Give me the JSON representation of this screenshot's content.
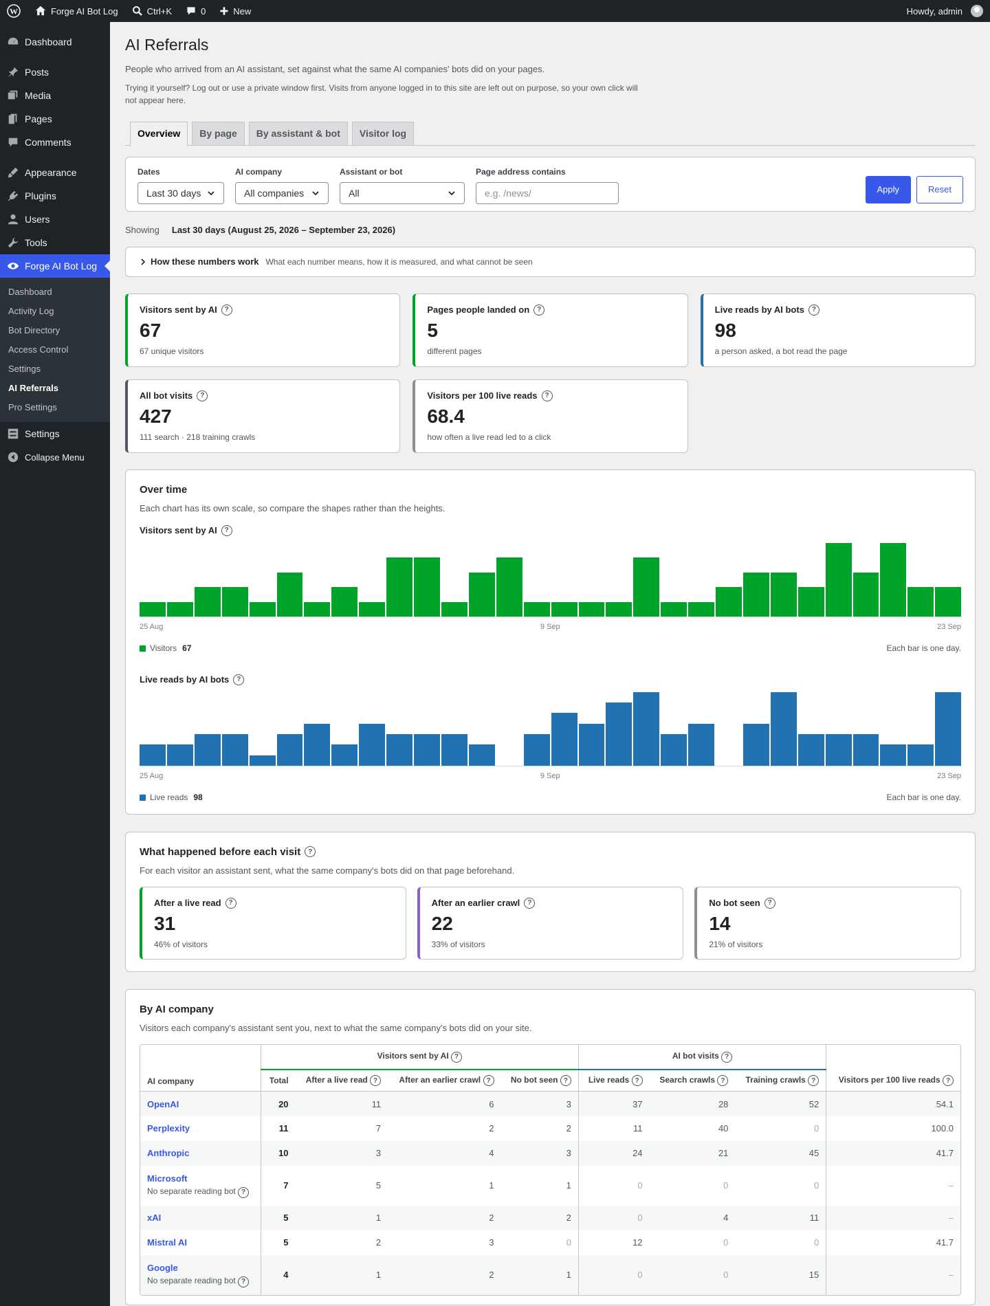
{
  "adminbar": {
    "site": "Forge AI Bot Log",
    "search": "Ctrl+K",
    "comments": "0",
    "new": "New",
    "howdy": "Howdy, admin"
  },
  "sidebar": {
    "items": [
      "Dashboard",
      "Posts",
      "Media",
      "Pages",
      "Comments",
      "Appearance",
      "Plugins",
      "Users",
      "Tools",
      "Forge AI Bot Log",
      "Settings",
      "Collapse Menu"
    ],
    "sub": [
      "Dashboard",
      "Activity Log",
      "Bot Directory",
      "Access Control",
      "Settings",
      "AI Referrals",
      "Pro Settings"
    ]
  },
  "page": {
    "title": "AI Referrals",
    "lead": "People who arrived from an AI assistant, set against what the same AI companies' bots did on your pages.",
    "note": "Trying it yourself? Log out or use a private window first. Visits from anyone logged in to this site are left out on purpose, so your own click will not appear here."
  },
  "tabs": [
    "Overview",
    "By page",
    "By assistant & bot",
    "Visitor log"
  ],
  "filters": {
    "dates_label": "Dates",
    "dates": "Last 30 days",
    "company_label": "AI company",
    "company": "All companies",
    "bot_label": "Assistant or bot",
    "bot": "All",
    "page_label": "Page address contains",
    "page_placeholder": "e.g. /news/",
    "apply": "Apply",
    "reset": "Reset"
  },
  "showing": {
    "label": "Showing",
    "value": "Last 30 days (August 25, 2026 – September 23, 2026)"
  },
  "how": {
    "title": "How these numbers work",
    "desc": "What each number means, how it is measured, and what cannot be seen"
  },
  "stats": [
    {
      "title": "Visitors sent by AI",
      "value": "67",
      "sub": "67 unique visitors",
      "color": "#00a32a"
    },
    {
      "title": "Pages people landed on",
      "value": "5",
      "sub": "different pages",
      "color": "#00a32a"
    },
    {
      "title": "Live reads by AI bots",
      "value": "98",
      "sub": "a person asked, a bot read the page",
      "color": "#2271b1"
    },
    {
      "title": "All bot visits",
      "value": "427",
      "sub": "111 search · 218 training crawls",
      "color": "#50575e"
    },
    {
      "title": "Visitors per 100 live reads",
      "value": "68.4",
      "sub": "how often a live read led to a click",
      "color": "#8c8f94"
    }
  ],
  "over": {
    "title": "Over time",
    "desc": "Each chart has its own scale, so compare the shapes rather than the heights.",
    "per_day": "Each bar is one day."
  },
  "chart_data": [
    {
      "type": "bar",
      "title": "Visitors sent by AI",
      "color": "#00a32a",
      "x_ticks": [
        "25 Aug",
        "9 Sep",
        "23 Sep"
      ],
      "legend": "Visitors",
      "total": "67",
      "values": [
        1,
        1,
        2,
        2,
        1,
        3,
        1,
        2,
        1,
        4,
        4,
        1,
        3,
        4,
        1,
        1,
        1,
        1,
        4,
        1,
        1,
        2,
        3,
        3,
        2,
        5,
        3,
        5,
        2,
        2
      ]
    },
    {
      "type": "bar",
      "title": "Live reads by AI bots",
      "color": "#2271b1",
      "x_ticks": [
        "25 Aug",
        "9 Sep",
        "23 Sep"
      ],
      "legend": "Live reads",
      "total": "98",
      "values": [
        2,
        2,
        3,
        3,
        1,
        3,
        4,
        2,
        4,
        3,
        3,
        3,
        2,
        0,
        3,
        5,
        4,
        6,
        7,
        3,
        4,
        0,
        4,
        7,
        3,
        3,
        3,
        2,
        2,
        7
      ]
    }
  ],
  "before": {
    "title": "What happened before each visit",
    "desc": "For each visitor an assistant sent, what the same company's bots did on that page beforehand.",
    "cards": [
      {
        "title": "After a live read",
        "value": "31",
        "sub": "46% of visitors",
        "color": "#00a32a"
      },
      {
        "title": "After an earlier crawl",
        "value": "22",
        "sub": "33% of visitors",
        "color": "#8c5fd0"
      },
      {
        "title": "No bot seen",
        "value": "14",
        "sub": "21% of visitors",
        "color": "#8c8f94"
      }
    ]
  },
  "company": {
    "title": "By AI company",
    "desc": "Visitors each company's assistant sent you, next to what the same company's bots did on your site.",
    "group1": "Visitors sent by AI",
    "group2": "AI bot visits",
    "headers": [
      "AI company",
      "Total",
      "After a live read",
      "After an earlier crawl",
      "No bot seen",
      "Live reads",
      "Search crawls",
      "Training crawls",
      "Visitors per 100 live reads"
    ],
    "rows": [
      {
        "name": "OpenAI",
        "note": "",
        "cells": [
          "20",
          "11",
          "6",
          "3",
          "37",
          "28",
          "52",
          "54.1"
        ]
      },
      {
        "name": "Perplexity",
        "note": "",
        "cells": [
          "11",
          "7",
          "2",
          "2",
          "11",
          "40",
          "0",
          "100.0"
        ]
      },
      {
        "name": "Anthropic",
        "note": "",
        "cells": [
          "10",
          "3",
          "4",
          "3",
          "24",
          "21",
          "45",
          "41.7"
        ]
      },
      {
        "name": "Microsoft",
        "note": "No separate reading bot",
        "cells": [
          "7",
          "5",
          "1",
          "1",
          "0",
          "0",
          "0",
          "–"
        ]
      },
      {
        "name": "xAI",
        "note": "",
        "cells": [
          "5",
          "1",
          "2",
          "2",
          "0",
          "4",
          "11",
          "–"
        ]
      },
      {
        "name": "Mistral AI",
        "note": "",
        "cells": [
          "5",
          "2",
          "3",
          "0",
          "12",
          "0",
          "0",
          "41.7"
        ]
      },
      {
        "name": "Google",
        "note": "No separate reading bot",
        "cells": [
          "4",
          "1",
          "2",
          "1",
          "0",
          "0",
          "15",
          "–"
        ]
      }
    ]
  }
}
